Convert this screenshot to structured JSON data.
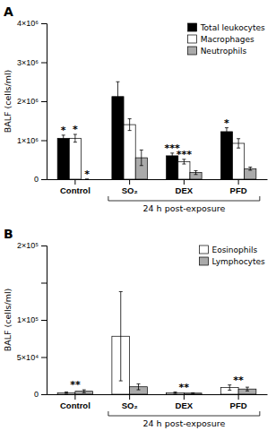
{
  "chart_data": [
    {
      "type": "bar",
      "title": "A",
      "categories": [
        "Control",
        "SO₂",
        "DEX",
        "PFD"
      ],
      "series": [
        {
          "name": "Total leukocytes",
          "color": "#000000",
          "values": [
            1050000,
            2120000,
            600000,
            1220000
          ],
          "errors": [
            80000,
            380000,
            70000,
            100000
          ]
        },
        {
          "name": "Macrophages",
          "color": "#ffffff",
          "values": [
            1050000,
            1400000,
            450000,
            920000
          ],
          "errors": [
            100000,
            150000,
            60000,
            120000
          ]
        },
        {
          "name": "Neutrophils",
          "color": "#aaaaaa",
          "values": [
            0,
            550000,
            170000,
            270000
          ],
          "errors": [
            0,
            200000,
            50000,
            40000
          ]
        }
      ],
      "ylabel": "BALF (cells/ml)",
      "ylim": [
        0,
        4000000
      ],
      "yticks": [
        0,
        {
          "value": 1000000,
          "label": "1×10⁶"
        },
        {
          "value": 2000000,
          "label": "2×10⁶"
        },
        {
          "value": 3000000,
          "label": "3×10⁶"
        },
        {
          "value": 4000000,
          "label": "4×10⁶"
        }
      ],
      "legend": "upper right",
      "annotations": [
        {
          "text": "*",
          "category": "Control",
          "series": "Total leukocytes"
        },
        {
          "text": "*",
          "category": "Control",
          "series": "Macrophages"
        },
        {
          "text": "*",
          "category": "Control",
          "series": "Neutrophils"
        },
        {
          "text": "***",
          "category": "DEX",
          "series": "Total leukocytes"
        },
        {
          "text": "***",
          "category": "DEX",
          "series": "Macrophages"
        },
        {
          "text": "*",
          "category": "PFD",
          "series": "Total leukocytes"
        }
      ],
      "bracket": {
        "label": "24 h post-exposure",
        "from": "SO₂",
        "to": "PFD"
      }
    },
    {
      "type": "bar",
      "title": "B",
      "categories": [
        "Control",
        "SO₂",
        "DEX",
        "PFD"
      ],
      "series": [
        {
          "name": "Eosinophils",
          "color": "#ffffff",
          "values": [
            2000,
            78000,
            2000,
            9000
          ],
          "errors": [
            1000,
            60000,
            1000,
            3500
          ]
        },
        {
          "name": "Lymphocytes",
          "color": "#aaaaaa",
          "values": [
            4000,
            10000,
            1500,
            7000
          ],
          "errors": [
            2000,
            4000,
            500,
            2500
          ]
        }
      ],
      "ylabel": "BALF (cells/ml)",
      "ylim": [
        0,
        200000
      ],
      "yticks": [
        0,
        {
          "value": 50000,
          "label": "5×10⁴"
        },
        {
          "value": 100000,
          "label": "1×10⁵"
        },
        {
          "value": 150000,
          "label": ""
        },
        {
          "value": 200000,
          "label": "2×10⁵"
        }
      ],
      "legend": "upper right",
      "annotations": [
        {
          "text": "**",
          "category": "Control"
        },
        {
          "text": "**",
          "category": "DEX"
        },
        {
          "text": "**",
          "category": "PFD"
        }
      ],
      "bracket": {
        "label": "24 h post-exposure",
        "from": "SO₂",
        "to": "PFD"
      }
    }
  ]
}
